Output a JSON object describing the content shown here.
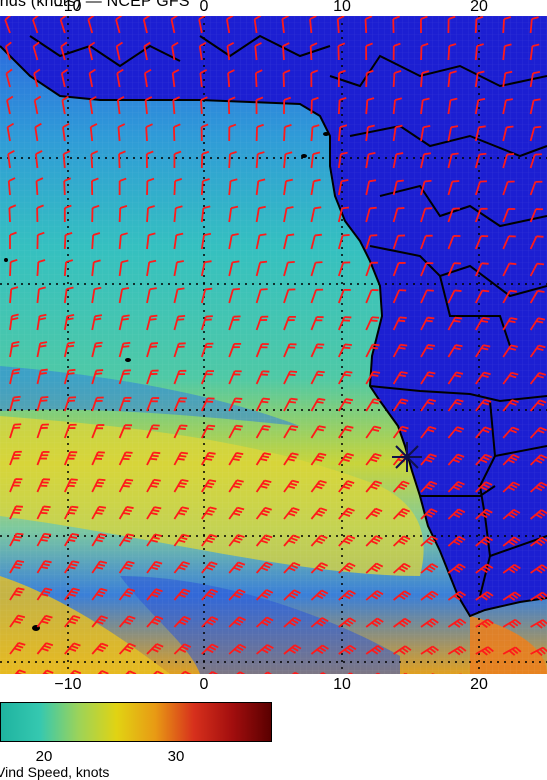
{
  "title": "inds (knots) — NCEP GFS",
  "top_ticks": [
    "−10",
    "0",
    "10",
    "20"
  ],
  "bottom_ticks": [
    "−10",
    "0",
    "10",
    "20"
  ],
  "colorbar": {
    "ticks": [
      "20",
      "30"
    ],
    "label": "Vind Speed, knots",
    "colors": [
      "#1fb3a0",
      "#35c8b0",
      "#9bd35a",
      "#e1d313",
      "#e89a14",
      "#d7301c",
      "#a20e0e",
      "#5a0000"
    ]
  },
  "colors": {
    "land": "#1a1ad0",
    "ocean_low": "#2b6ee0",
    "ocean_mid": "#35c8b0",
    "ocean_high": "#e1d313",
    "barb": "#ff1a1a",
    "coast": "#000000"
  }
}
